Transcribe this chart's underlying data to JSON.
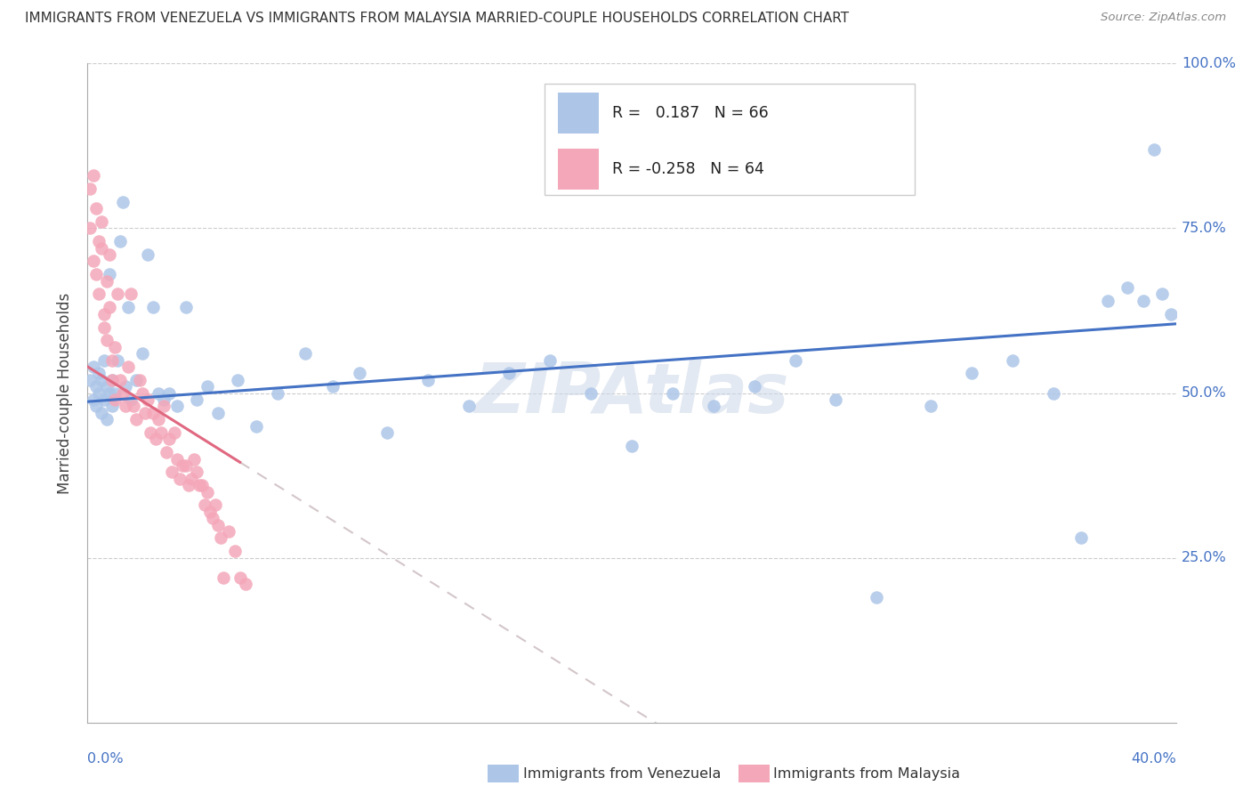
{
  "title": "IMMIGRANTS FROM VENEZUELA VS IMMIGRANTS FROM MALAYSIA MARRIED-COUPLE HOUSEHOLDS CORRELATION CHART",
  "source": "Source: ZipAtlas.com",
  "ylabel": "Married-couple Households",
  "r_venezuela": 0.187,
  "n_venezuela": 66,
  "r_malaysia": -0.258,
  "n_malaysia": 64,
  "legend_label_venezuela": "Immigrants from Venezuela",
  "legend_label_malaysia": "Immigrants from Malaysia",
  "color_venezuela": "#adc6e8",
  "color_malaysia": "#f4a7b9",
  "line_color_venezuela": "#4472c4",
  "line_color_malaysia": "#e06880",
  "watermark": "ZIPAtlas",
  "xlim": [
    0.0,
    0.4
  ],
  "ylim": [
    0.0,
    1.0
  ],
  "ven_x": [
    0.001,
    0.002,
    0.002,
    0.003,
    0.003,
    0.004,
    0.004,
    0.005,
    0.005,
    0.006,
    0.006,
    0.007,
    0.007,
    0.008,
    0.008,
    0.009,
    0.009,
    0.01,
    0.011,
    0.012,
    0.013,
    0.014,
    0.015,
    0.016,
    0.018,
    0.02,
    0.022,
    0.024,
    0.026,
    0.028,
    0.03,
    0.033,
    0.036,
    0.04,
    0.044,
    0.048,
    0.055,
    0.062,
    0.07,
    0.08,
    0.09,
    0.1,
    0.11,
    0.125,
    0.14,
    0.155,
    0.17,
    0.185,
    0.2,
    0.215,
    0.23,
    0.245,
    0.26,
    0.275,
    0.29,
    0.31,
    0.325,
    0.34,
    0.355,
    0.365,
    0.375,
    0.382,
    0.388,
    0.392,
    0.395,
    0.398
  ],
  "ven_y": [
    0.52,
    0.49,
    0.54,
    0.51,
    0.48,
    0.53,
    0.5,
    0.52,
    0.47,
    0.55,
    0.49,
    0.51,
    0.46,
    0.5,
    0.68,
    0.52,
    0.48,
    0.5,
    0.55,
    0.73,
    0.79,
    0.51,
    0.63,
    0.49,
    0.52,
    0.56,
    0.71,
    0.63,
    0.5,
    0.49,
    0.5,
    0.48,
    0.63,
    0.49,
    0.51,
    0.47,
    0.52,
    0.45,
    0.5,
    0.56,
    0.51,
    0.53,
    0.44,
    0.52,
    0.48,
    0.53,
    0.55,
    0.5,
    0.42,
    0.5,
    0.48,
    0.51,
    0.55,
    0.49,
    0.19,
    0.48,
    0.53,
    0.55,
    0.5,
    0.28,
    0.64,
    0.66,
    0.64,
    0.87,
    0.65,
    0.62
  ],
  "mal_x": [
    0.001,
    0.001,
    0.002,
    0.002,
    0.003,
    0.003,
    0.004,
    0.004,
    0.005,
    0.005,
    0.006,
    0.006,
    0.007,
    0.007,
    0.008,
    0.008,
    0.009,
    0.009,
    0.01,
    0.01,
    0.011,
    0.012,
    0.013,
    0.014,
    0.015,
    0.016,
    0.017,
    0.018,
    0.019,
    0.02,
    0.021,
    0.022,
    0.023,
    0.024,
    0.025,
    0.026,
    0.027,
    0.028,
    0.029,
    0.03,
    0.031,
    0.032,
    0.033,
    0.034,
    0.035,
    0.036,
    0.037,
    0.038,
    0.039,
    0.04,
    0.041,
    0.042,
    0.043,
    0.044,
    0.045,
    0.046,
    0.047,
    0.048,
    0.049,
    0.05,
    0.052,
    0.054,
    0.056,
    0.058
  ],
  "mal_y": [
    0.81,
    0.75,
    0.7,
    0.83,
    0.78,
    0.68,
    0.73,
    0.65,
    0.76,
    0.72,
    0.62,
    0.6,
    0.67,
    0.58,
    0.71,
    0.63,
    0.55,
    0.52,
    0.57,
    0.49,
    0.65,
    0.52,
    0.5,
    0.48,
    0.54,
    0.65,
    0.48,
    0.46,
    0.52,
    0.5,
    0.47,
    0.49,
    0.44,
    0.47,
    0.43,
    0.46,
    0.44,
    0.48,
    0.41,
    0.43,
    0.38,
    0.44,
    0.4,
    0.37,
    0.39,
    0.39,
    0.36,
    0.37,
    0.4,
    0.38,
    0.36,
    0.36,
    0.33,
    0.35,
    0.32,
    0.31,
    0.33,
    0.3,
    0.28,
    0.22,
    0.29,
    0.26,
    0.22,
    0.21
  ]
}
